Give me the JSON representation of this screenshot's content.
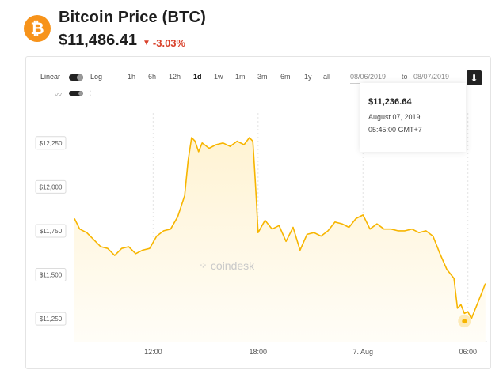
{
  "header": {
    "logo_glyph": "₿",
    "title": "Bitcoin Price (BTC)",
    "price": "$11,486.41",
    "change": "-3.03%",
    "change_color": "#d9412b"
  },
  "toolbar": {
    "linear_label": "Linear",
    "log_label": "Log",
    "ranges": [
      "1h",
      "6h",
      "12h",
      "1d",
      "1w",
      "1m",
      "3m",
      "6m",
      "1y",
      "all"
    ],
    "active_range": "1d",
    "date_from": "08/06/2019",
    "to_label": "to",
    "date_to": "08/07/2019"
  },
  "tooltip": {
    "price": "$11,236.64",
    "date": "August 07, 2019",
    "time": "05:45:00 GMT+7"
  },
  "watermark": "coindesk",
  "colors": {
    "line": "#f7b500",
    "fill": "#fff6dd",
    "accent": "#f7931a"
  },
  "chart_data": {
    "type": "area",
    "ylabel": "",
    "xlabel": "",
    "ylim": [
      11120,
      12420
    ],
    "y_ticks": [
      11250,
      11500,
      11750,
      12000,
      12250
    ],
    "y_tick_labels": [
      "$11,250",
      "$11,500",
      "$11,750",
      "$12,000",
      "$12,250"
    ],
    "x_tick_labels": [
      "12:00",
      "18:00",
      "7. Aug",
      "06:00"
    ],
    "x_tick_positions": [
      12,
      18,
      24,
      30
    ],
    "xlim": [
      7.5,
      31.1
    ],
    "grid": "dashed vertical",
    "series": [
      {
        "x": [
          7.5,
          7.8,
          8.2,
          8.6,
          9.0,
          9.4,
          9.8,
          10.2,
          10.6,
          11.0,
          11.4,
          11.8,
          12.2,
          12.6,
          13.0,
          13.4,
          13.8,
          14.0,
          14.2,
          14.4,
          14.6,
          14.8,
          15.2,
          15.6,
          16.0,
          16.4,
          16.8,
          17.2,
          17.5,
          17.7,
          17.8,
          17.9,
          18.0,
          18.4,
          18.8,
          19.2,
          19.6,
          20.0,
          20.4,
          20.8,
          21.2,
          21.6,
          22.0,
          22.4,
          22.8,
          23.2,
          23.6,
          24.0,
          24.4,
          24.8,
          25.2,
          25.6,
          26.0,
          26.4,
          26.8,
          27.2,
          27.6,
          28.0,
          28.4,
          28.8,
          29.2,
          29.4,
          29.6,
          29.8,
          30.0,
          30.2,
          30.4,
          30.6,
          30.8,
          31.0
        ],
        "y": [
          11820,
          11760,
          11740,
          11700,
          11660,
          11650,
          11610,
          11650,
          11660,
          11620,
          11640,
          11650,
          11720,
          11750,
          11760,
          11830,
          11950,
          12150,
          12280,
          12260,
          12200,
          12250,
          12220,
          12240,
          12250,
          12230,
          12260,
          12240,
          12280,
          12260,
          12100,
          11930,
          11740,
          11810,
          11760,
          11780,
          11690,
          11770,
          11640,
          11730,
          11740,
          11720,
          11750,
          11800,
          11790,
          11770,
          11820,
          11840,
          11760,
          11790,
          11760,
          11760,
          11750,
          11750,
          11760,
          11740,
          11750,
          11720,
          11620,
          11530,
          11480,
          11310,
          11330,
          11280,
          11290,
          11250,
          11300,
          11350,
          11400,
          11450
        ]
      }
    ],
    "highlight_point": {
      "x": 29.8,
      "y": 11236.64
    }
  }
}
